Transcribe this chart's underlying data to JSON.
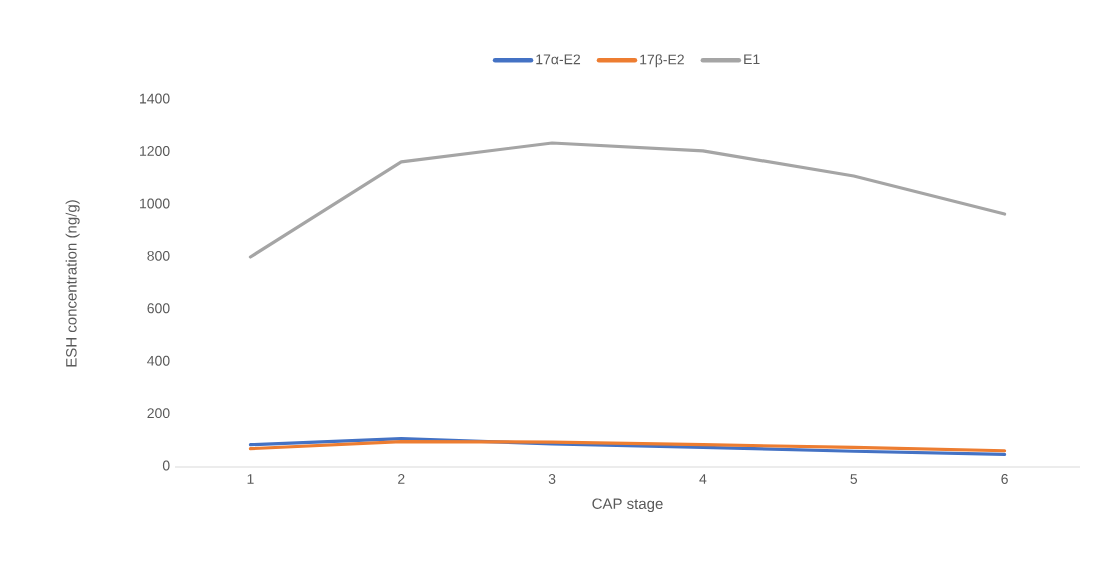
{
  "chart_data": {
    "type": "line",
    "xlabel": "CAP stage",
    "ylabel": "ESH concentration (ng/g)",
    "categories": [
      "1",
      "2",
      "3",
      "4",
      "5",
      "6"
    ],
    "series": [
      {
        "name": "17α-E2",
        "color": "#4472c4",
        "values": [
          85,
          108,
          88,
          75,
          60,
          48
        ]
      },
      {
        "name": "17β-E2",
        "color": "#ed7d31",
        "values": [
          70,
          97,
          95,
          85,
          75,
          62
        ]
      },
      {
        "name": "E1",
        "color": "#a5a5a5",
        "values": [
          801,
          1164,
          1236,
          1206,
          1110,
          965
        ]
      }
    ],
    "ylim": [
      0,
      1400
    ],
    "yticks": [
      0,
      200,
      400,
      600,
      800,
      1000,
      1200,
      1400
    ],
    "legend": "top",
    "grid": false,
    "marker": "none",
    "line_style": "solid"
  }
}
